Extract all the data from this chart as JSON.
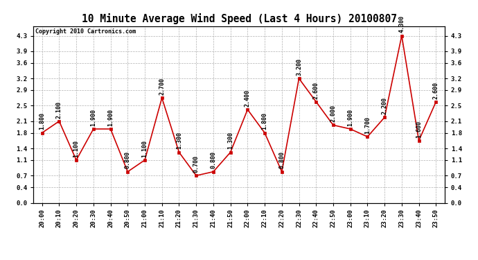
{
  "title": "10 Minute Average Wind Speed (Last 4 Hours) 20100807",
  "copyright": "Copyright 2010 Cartronics.com",
  "x_labels": [
    "20:00",
    "20:10",
    "20:20",
    "20:30",
    "20:40",
    "20:50",
    "21:00",
    "21:10",
    "21:20",
    "21:30",
    "21:40",
    "21:50",
    "22:00",
    "22:10",
    "22:20",
    "22:30",
    "22:40",
    "22:50",
    "23:00",
    "23:10",
    "23:20",
    "23:30",
    "23:40",
    "23:50"
  ],
  "y_values": [
    1.8,
    2.1,
    1.1,
    1.9,
    1.9,
    0.8,
    1.1,
    2.7,
    1.3,
    0.7,
    0.8,
    1.3,
    2.4,
    1.8,
    0.8,
    3.2,
    2.6,
    2.0,
    1.9,
    1.7,
    2.2,
    4.3,
    1.6,
    2.6
  ],
  "line_color": "#cc0000",
  "marker_color": "#cc0000",
  "background_color": "#ffffff",
  "grid_color": "#b0b0b0",
  "ylim_min": 0.0,
  "ylim_max": 4.55,
  "yticks": [
    0.0,
    0.4,
    0.7,
    1.1,
    1.4,
    1.8,
    2.1,
    2.5,
    2.9,
    3.2,
    3.6,
    3.9,
    4.3
  ],
  "title_fontsize": 10.5,
  "tick_fontsize": 6.5,
  "annot_fontsize": 6.0,
  "copyright_fontsize": 6.0
}
